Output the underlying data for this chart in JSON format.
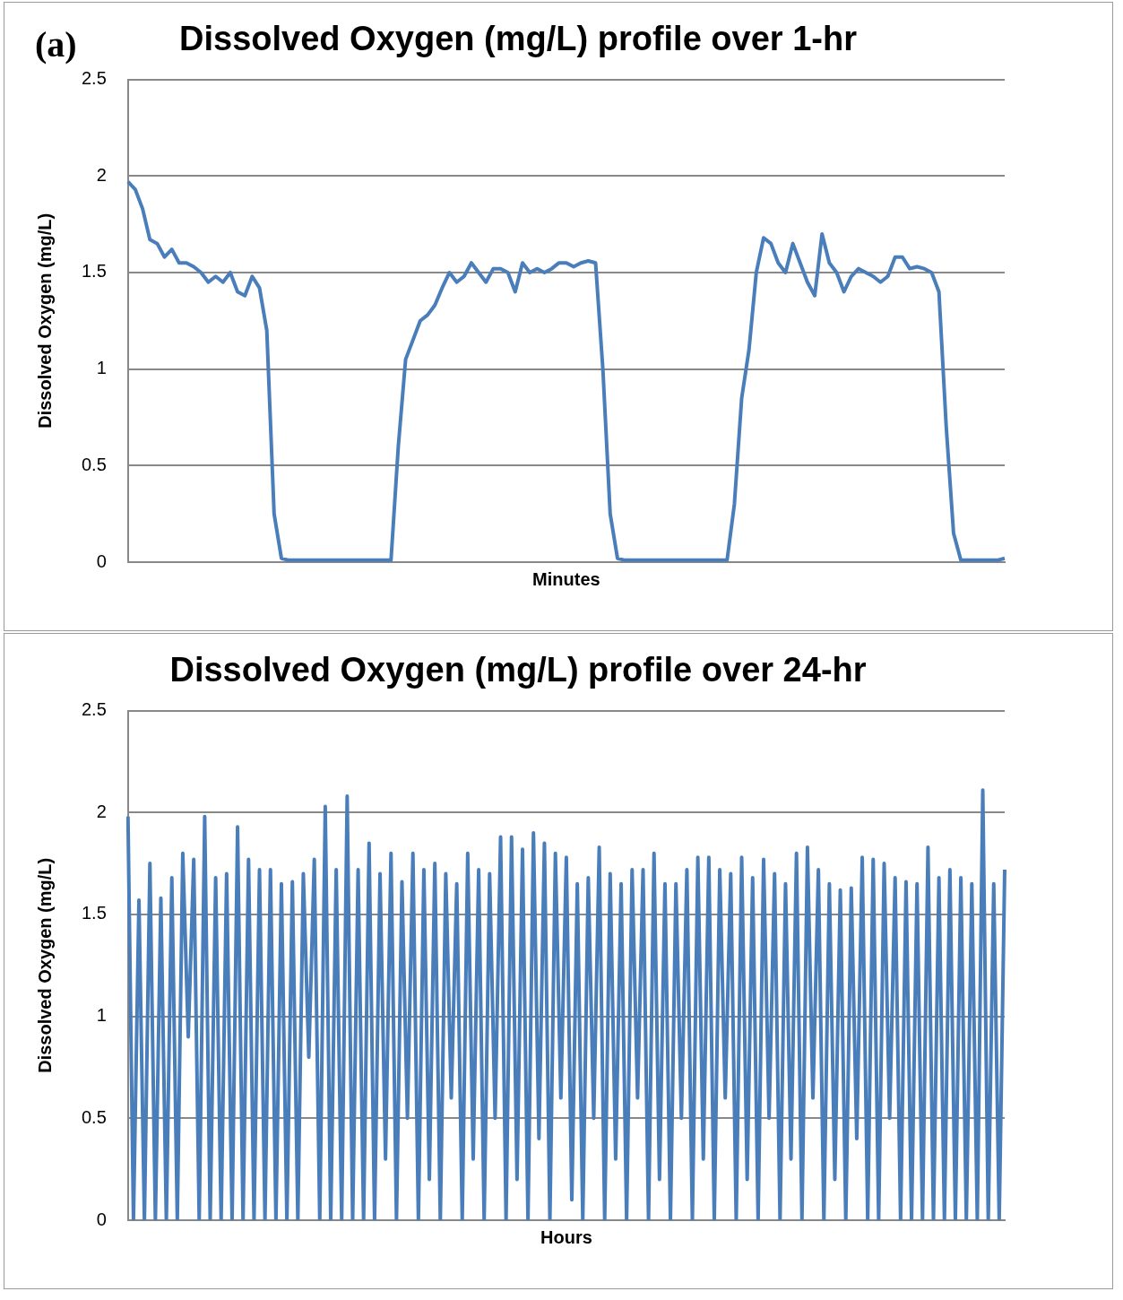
{
  "chart_data": [
    {
      "type": "line",
      "title": "Dissolved Oxygen (mg/L) profile over 1-hr",
      "xlabel": "Minutes",
      "ylabel": "Dissolved Oxygen (mg/L)",
      "annotations": [
        "(a)"
      ],
      "categories": [
        null,
        null,
        null,
        null,
        null,
        null,
        null,
        null,
        null,
        null,
        null,
        null,
        null,
        null,
        null,
        null,
        null,
        null,
        null,
        null,
        null,
        null,
        null,
        null,
        null,
        null,
        null,
        null,
        null,
        null,
        null,
        null,
        null,
        null,
        null,
        null,
        null,
        null,
        null,
        null,
        null,
        null,
        null,
        null,
        null,
        null,
        null,
        null,
        null,
        null,
        null,
        null,
        null,
        null,
        null,
        null,
        null,
        null,
        null,
        null,
        null,
        null,
        null,
        null,
        null,
        null,
        null,
        null,
        null,
        null,
        null,
        null,
        null,
        null,
        null,
        null,
        null,
        null,
        null,
        null,
        null,
        null,
        null,
        null,
        null,
        null,
        null,
        null,
        null,
        null,
        null,
        null,
        null,
        null,
        null,
        null,
        null,
        null,
        null,
        null,
        null,
        null,
        null,
        null,
        null,
        null,
        null,
        null,
        null,
        null,
        null,
        null,
        null,
        null,
        null,
        null,
        null,
        null,
        null,
        null,
        null
      ],
      "series": [
        {
          "color": "#4a7ebb",
          "values": [
            1.97,
            1.93,
            1.83,
            1.67,
            1.65,
            1.58,
            1.62,
            1.55,
            1.55,
            1.53,
            1.5,
            1.45,
            1.48,
            1.45,
            1.5,
            1.4,
            1.38,
            1.48,
            1.42,
            1.2,
            0.25,
            0.02,
            0.01,
            0.01,
            0.01,
            0.01,
            0.01,
            0.01,
            0.01,
            0.01,
            0.01,
            0.01,
            0.01,
            0.01,
            0.01,
            0.01,
            0.01,
            0.6,
            1.05,
            1.15,
            1.25,
            1.28,
            1.33,
            1.42,
            1.5,
            1.45,
            1.48,
            1.55,
            1.5,
            1.45,
            1.52,
            1.52,
            1.5,
            1.4,
            1.55,
            1.5,
            1.52,
            1.5,
            1.52,
            1.55,
            1.55,
            1.53,
            1.55,
            1.56,
            1.55,
            1.0,
            0.25,
            0.02,
            0.01,
            0.01,
            0.01,
            0.01,
            0.01,
            0.01,
            0.01,
            0.01,
            0.01,
            0.01,
            0.01,
            0.01,
            0.01,
            0.01,
            0.01,
            0.3,
            0.85,
            1.1,
            1.5,
            1.68,
            1.65,
            1.55,
            1.5,
            1.65,
            1.55,
            1.45,
            1.38,
            1.7,
            1.55,
            1.5,
            1.4,
            1.48,
            1.52,
            1.5,
            1.48,
            1.45,
            1.48,
            1.58,
            1.58,
            1.52,
            1.53,
            1.52,
            1.5,
            1.4,
            0.7,
            0.15,
            0.01,
            0.01,
            0.01,
            0.01,
            0.01,
            0.01,
            0.02
          ]
        }
      ],
      "ylim": [
        0,
        2.5
      ],
      "yticks": [
        0,
        0.5,
        1,
        1.5,
        2,
        2.5
      ],
      "grid": "y",
      "legend": false,
      "marker": "none",
      "line_style": "solid",
      "tick_labels": "y"
    },
    {
      "type": "line",
      "title": "Dissolved Oxygen (mg/L) profile over 24-hr",
      "xlabel": "Hours",
      "ylabel": "Dissolved Oxygen (mg/L)",
      "categories": [
        null,
        null,
        null,
        null,
        null,
        null,
        null,
        null,
        null,
        null,
        null,
        null,
        null,
        null,
        null,
        null,
        null,
        null,
        null,
        null,
        null,
        null,
        null,
        null,
        null,
        null,
        null,
        null,
        null,
        null,
        null,
        null,
        null,
        null,
        null,
        null,
        null,
        null,
        null,
        null,
        null,
        null,
        null,
        null,
        null,
        null,
        null,
        null,
        null,
        null,
        null,
        null,
        null,
        null,
        null,
        null,
        null,
        null,
        null,
        null,
        null,
        null,
        null,
        null,
        null,
        null,
        null,
        null,
        null,
        null,
        null,
        null,
        null,
        null,
        null,
        null,
        null,
        null,
        null,
        null,
        null,
        null,
        null,
        null,
        null,
        null,
        null,
        null,
        null,
        null,
        null,
        null,
        null,
        null,
        null,
        null,
        null,
        null,
        null,
        null,
        null,
        null,
        null,
        null,
        null,
        null,
        null,
        null,
        null,
        null,
        null,
        null,
        null,
        null,
        null,
        null,
        null,
        null,
        null,
        null,
        null,
        null,
        null,
        null,
        null,
        null,
        null,
        null,
        null,
        null,
        null,
        null,
        null,
        null,
        null,
        null,
        null,
        null,
        null,
        null,
        null,
        null,
        null,
        null,
        null,
        null,
        null,
        null,
        null,
        null,
        null,
        null,
        null,
        null,
        null,
        null,
        null,
        null,
        null,
        null,
        null
      ],
      "series": [
        {
          "color": "#4a7ebb",
          "values": [
            1.98,
            0,
            1.57,
            0,
            1.75,
            0,
            1.58,
            0,
            1.68,
            0,
            1.8,
            0.9,
            1.77,
            0,
            1.98,
            0,
            1.68,
            0,
            1.7,
            0,
            1.93,
            0,
            1.77,
            0,
            1.72,
            0,
            1.72,
            0,
            1.65,
            0,
            1.66,
            0,
            1.7,
            0.8,
            1.77,
            0,
            2.03,
            0,
            1.72,
            0,
            2.08,
            0,
            1.72,
            0,
            1.85,
            0,
            1.7,
            0.3,
            1.8,
            0,
            1.66,
            0.5,
            1.8,
            0,
            1.72,
            0.2,
            1.75,
            0,
            1.7,
            0.6,
            1.65,
            0,
            1.8,
            0.3,
            1.72,
            0,
            1.7,
            0.5,
            1.88,
            0,
            1.88,
            0.2,
            1.82,
            0,
            1.9,
            0.4,
            1.85,
            0,
            1.8,
            0.6,
            1.78,
            0.1,
            1.65,
            0,
            1.68,
            0.5,
            1.83,
            0,
            1.7,
            0.3,
            1.65,
            0,
            1.72,
            0.6,
            1.72,
            0,
            1.8,
            0.2,
            1.65,
            0,
            1.65,
            0.5,
            1.72,
            0,
            1.78,
            0.3,
            1.78,
            0,
            1.72,
            0.6,
            1.7,
            0,
            1.78,
            0.2,
            1.68,
            0,
            1.77,
            0.5,
            1.7,
            0,
            1.65,
            0.3,
            1.8,
            0,
            1.83,
            0.6,
            1.72,
            0,
            1.65,
            0.2,
            1.62,
            0,
            1.63,
            0.4,
            1.78,
            0,
            1.77,
            0,
            1.75,
            0.5,
            1.68,
            0,
            1.66,
            0,
            1.65,
            0,
            1.83,
            0,
            1.68,
            0,
            1.72,
            0,
            1.68,
            0,
            1.65,
            0,
            2.11,
            0,
            1.65,
            0,
            1.72
          ]
        }
      ],
      "ylim": [
        0,
        2.5
      ],
      "yticks": [
        0,
        0.5,
        1,
        1.5,
        2,
        2.5
      ],
      "grid": "y",
      "legend": false,
      "marker": "none",
      "line_style": "solid",
      "tick_labels": "y"
    }
  ]
}
